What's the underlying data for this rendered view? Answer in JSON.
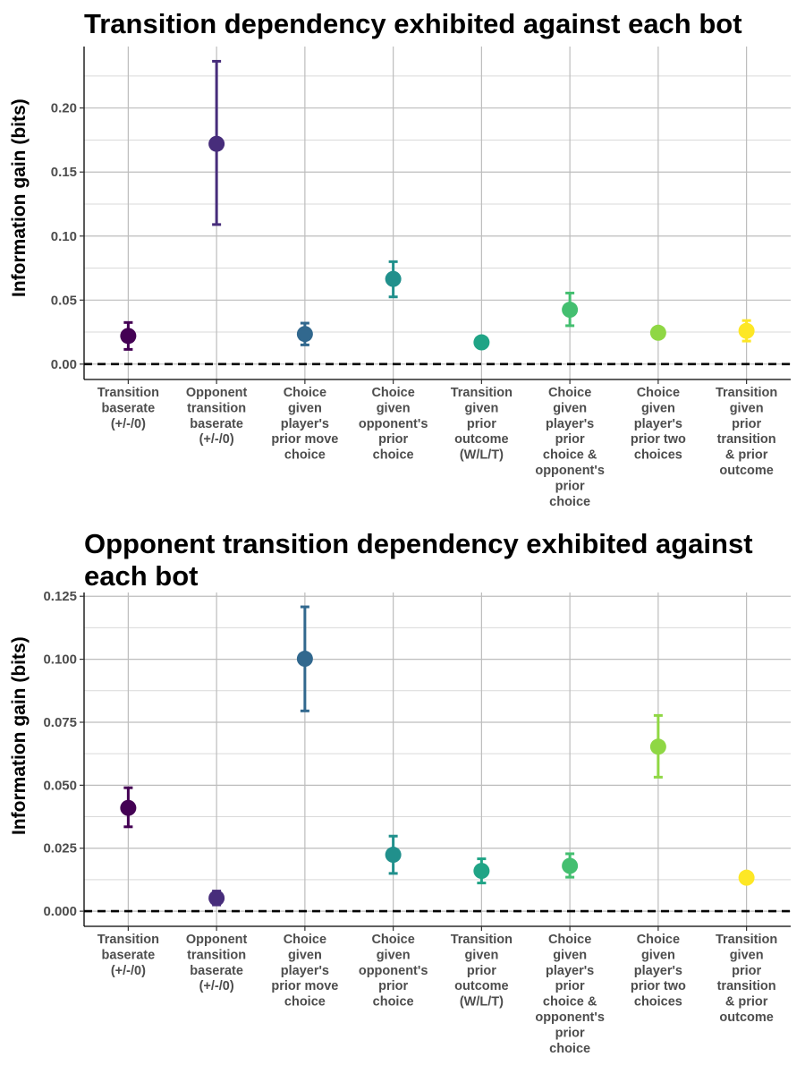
{
  "chart_data": [
    {
      "type": "scatter",
      "title": "Transition dependency exhibited against each bot",
      "ylabel": "Information gain (bits)",
      "xlabel": "",
      "ylim": [
        -0.012,
        0.248
      ],
      "yticks": [
        0.0,
        0.05,
        0.1,
        0.15,
        0.2
      ],
      "ytick_labels": [
        "0.00",
        "0.05",
        "0.10",
        "0.15",
        "0.20"
      ],
      "reference_line": {
        "y": 0,
        "style": "dashed"
      },
      "grid": true,
      "categories": [
        [
          "Transition",
          "baserate",
          "(+/-/0)"
        ],
        [
          "Opponent",
          "transition",
          "baserate",
          "(+/-/0)"
        ],
        [
          "Choice",
          "given",
          "player's",
          "prior move",
          "choice"
        ],
        [
          "Choice",
          "given",
          "opponent's",
          "prior",
          "choice"
        ],
        [
          "Transition",
          "given",
          "prior",
          "outcome",
          "(W/L/T)"
        ],
        [
          "Choice",
          "given",
          "player's",
          "prior",
          "choice &",
          "opponent's",
          "prior",
          "choice"
        ],
        [
          "Choice",
          "given",
          "player's",
          "prior two",
          "choices"
        ],
        [
          "Transition",
          "given",
          "prior",
          "transition",
          "& prior",
          "outcome"
        ]
      ],
      "values": [
        0.022,
        0.172,
        0.0235,
        0.0665,
        0.017,
        0.0425,
        0.0245,
        0.026
      ],
      "error_low": [
        0.0115,
        0.109,
        0.015,
        0.0525,
        0.0165,
        0.03,
        0.0225,
        0.018
      ],
      "error_high": [
        0.0325,
        0.2365,
        0.032,
        0.08,
        0.0175,
        0.0555,
        0.0265,
        0.034
      ],
      "colors": [
        "#440154",
        "#472D7B",
        "#31688E",
        "#21908C",
        "#20A486",
        "#44BF70",
        "#8FD744",
        "#FDE725"
      ]
    },
    {
      "type": "scatter",
      "title": "Opponent transition dependency exhibited against each bot",
      "ylabel": "Information gain (bits)",
      "xlabel": "",
      "ylim": [
        -0.006,
        0.1265
      ],
      "yticks": [
        0.0,
        0.025,
        0.05,
        0.075,
        0.1,
        0.125
      ],
      "ytick_labels": [
        "0.000",
        "0.025",
        "0.050",
        "0.075",
        "0.100",
        "0.125"
      ],
      "reference_line": {
        "y": 0,
        "style": "dashed"
      },
      "grid": true,
      "categories": [
        [
          "Transition",
          "baserate",
          "(+/-/0)"
        ],
        [
          "Opponent",
          "transition",
          "baserate",
          "(+/-/0)"
        ],
        [
          "Choice",
          "given",
          "player's",
          "prior move",
          "choice"
        ],
        [
          "Choice",
          "given",
          "opponent's",
          "prior",
          "choice"
        ],
        [
          "Transition",
          "given",
          "prior",
          "outcome",
          "(W/L/T)"
        ],
        [
          "Choice",
          "given",
          "player's",
          "prior",
          "choice &",
          "opponent's",
          "prior",
          "choice"
        ],
        [
          "Choice",
          "given",
          "player's",
          "prior two",
          "choices"
        ],
        [
          "Transition",
          "given",
          "prior",
          "transition",
          "& prior",
          "outcome"
        ]
      ],
      "values": [
        0.041,
        0.0052,
        0.1002,
        0.0224,
        0.016,
        0.018,
        0.0653,
        0.0133
      ],
      "error_low": [
        0.0335,
        0.0025,
        0.0795,
        0.015,
        0.0112,
        0.0135,
        0.0532,
        0.0113
      ],
      "error_high": [
        0.049,
        0.008,
        0.1208,
        0.0298,
        0.0208,
        0.0228,
        0.0777,
        0.0153
      ],
      "colors": [
        "#440154",
        "#472D7B",
        "#31688E",
        "#21908C",
        "#20A486",
        "#44BF70",
        "#8FD744",
        "#FDE725"
      ]
    }
  ]
}
